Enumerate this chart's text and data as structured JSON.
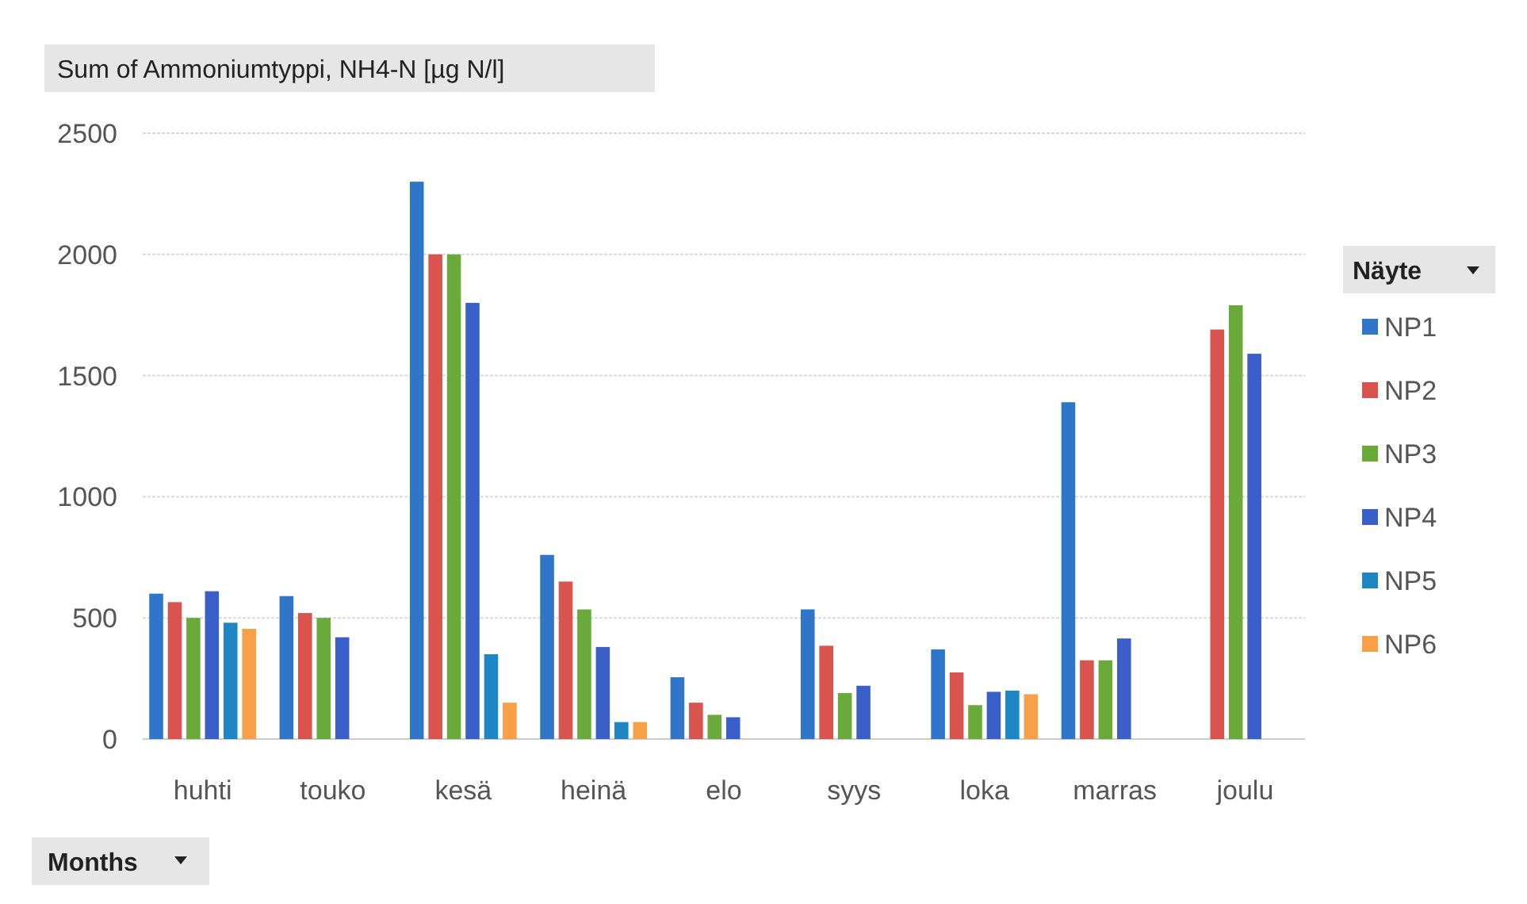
{
  "chart_data": {
    "type": "bar",
    "title": "Sum of Ammoniumtyppi, NH4-N [µg N/l]",
    "xlabel": "Months",
    "legend_title": "Näyte",
    "categories": [
      "huhti",
      "touko",
      "kesä",
      "heinä",
      "elo",
      "syys",
      "loka",
      "marras",
      "joulu"
    ],
    "series": [
      {
        "name": "NP1",
        "color": "#2f75c8",
        "values": [
          600,
          590,
          2300,
          760,
          255,
          535,
          370,
          1390,
          null
        ]
      },
      {
        "name": "NP2",
        "color": "#d9534f",
        "values": [
          565,
          520,
          2000,
          650,
          150,
          385,
          275,
          325,
          1690
        ]
      },
      {
        "name": "NP3",
        "color": "#6aaa3a",
        "values": [
          500,
          500,
          2000,
          535,
          100,
          190,
          140,
          325,
          1790
        ]
      },
      {
        "name": "NP4",
        "color": "#3a5fc8",
        "values": [
          610,
          420,
          1800,
          380,
          90,
          220,
          195,
          415,
          1590
        ]
      },
      {
        "name": "NP5",
        "color": "#1f86c4",
        "values": [
          480,
          null,
          350,
          70,
          null,
          null,
          200,
          null,
          null
        ]
      },
      {
        "name": "NP6",
        "color": "#f7a048",
        "values": [
          455,
          null,
          150,
          70,
          null,
          null,
          185,
          null,
          null
        ]
      }
    ],
    "ylim": [
      0,
      2500
    ],
    "yticks": [
      0,
      500,
      1000,
      1500,
      2000,
      2500
    ],
    "grid": "y",
    "legend": "right"
  }
}
